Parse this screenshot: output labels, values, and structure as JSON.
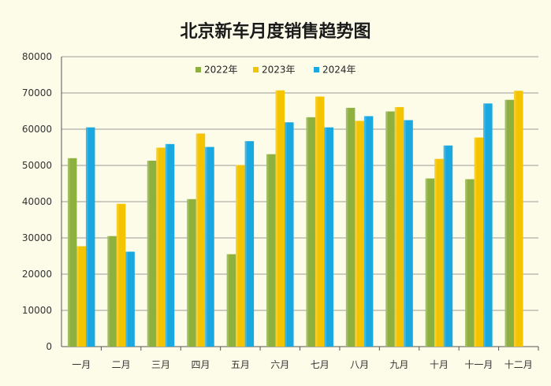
{
  "chart_data": {
    "type": "bar",
    "title": "北京新车月度销售趋势图",
    "categories": [
      "一月",
      "二月",
      "三月",
      "四月",
      "五月",
      "六月",
      "七月",
      "八月",
      "九月",
      "十月",
      "十一月",
      "十二月"
    ],
    "series": [
      {
        "name": "2022年",
        "color": "#8db03f",
        "values": [
          52000,
          30500,
          51300,
          40700,
          25500,
          53100,
          63300,
          65900,
          64900,
          46400,
          46200,
          68100
        ]
      },
      {
        "name": "2023年",
        "color": "#f5c400",
        "values": [
          27700,
          39400,
          54900,
          58800,
          50100,
          70700,
          69000,
          62300,
          66100,
          51800,
          57700,
          70600
        ]
      },
      {
        "name": "2024年",
        "color": "#19a8e0",
        "values": [
          60500,
          26200,
          55900,
          55100,
          56700,
          61900,
          60500,
          63600,
          62500,
          55500,
          67100,
          null
        ]
      }
    ],
    "ylim": [
      0,
      80000
    ],
    "yticks": [
      "0",
      "10000",
      "20000",
      "30000",
      "40000",
      "50000",
      "60000",
      "70000",
      "80000"
    ],
    "grid": true,
    "legend": "top-center"
  }
}
